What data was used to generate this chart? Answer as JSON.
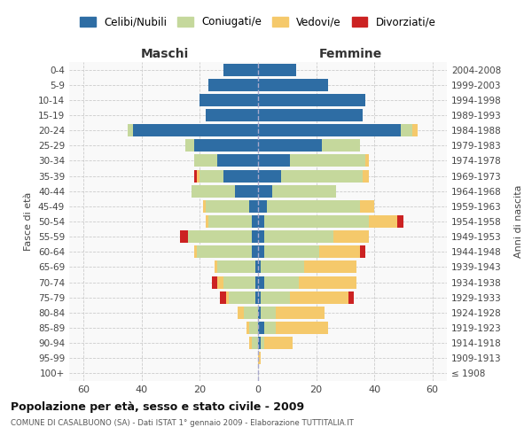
{
  "age_groups": [
    "100+",
    "95-99",
    "90-94",
    "85-89",
    "80-84",
    "75-79",
    "70-74",
    "65-69",
    "60-64",
    "55-59",
    "50-54",
    "45-49",
    "40-44",
    "35-39",
    "30-34",
    "25-29",
    "20-24",
    "15-19",
    "10-14",
    "5-9",
    "0-4"
  ],
  "birth_years": [
    "≤ 1908",
    "1909-1913",
    "1914-1918",
    "1919-1923",
    "1924-1928",
    "1929-1933",
    "1934-1938",
    "1939-1943",
    "1944-1948",
    "1949-1953",
    "1954-1958",
    "1959-1963",
    "1964-1968",
    "1969-1973",
    "1974-1978",
    "1979-1983",
    "1984-1988",
    "1989-1993",
    "1994-1998",
    "1999-2003",
    "2004-2008"
  ],
  "males": {
    "celibi": [
      0,
      0,
      0,
      0,
      0,
      1,
      1,
      1,
      2,
      2,
      2,
      3,
      8,
      12,
      14,
      22,
      43,
      18,
      20,
      17,
      12
    ],
    "coniugati": [
      0,
      0,
      2,
      3,
      5,
      9,
      11,
      13,
      19,
      22,
      15,
      15,
      15,
      8,
      8,
      3,
      2,
      0,
      0,
      0,
      0
    ],
    "vedovi": [
      0,
      0,
      1,
      1,
      2,
      1,
      2,
      1,
      1,
      0,
      1,
      1,
      0,
      1,
      0,
      0,
      0,
      0,
      0,
      0,
      0
    ],
    "divorziati": [
      0,
      0,
      0,
      0,
      0,
      2,
      2,
      0,
      0,
      3,
      0,
      0,
      0,
      1,
      0,
      0,
      0,
      0,
      0,
      0,
      0
    ]
  },
  "females": {
    "nubili": [
      0,
      0,
      1,
      2,
      1,
      1,
      2,
      1,
      2,
      2,
      2,
      3,
      5,
      8,
      11,
      22,
      49,
      36,
      37,
      24,
      13
    ],
    "coniugate": [
      0,
      0,
      1,
      4,
      5,
      10,
      12,
      15,
      19,
      24,
      36,
      32,
      22,
      28,
      26,
      13,
      4,
      0,
      0,
      0,
      0
    ],
    "vedove": [
      0,
      1,
      10,
      18,
      17,
      20,
      20,
      18,
      14,
      12,
      10,
      5,
      0,
      2,
      1,
      0,
      2,
      0,
      0,
      0,
      0
    ],
    "divorziate": [
      0,
      0,
      0,
      0,
      0,
      2,
      0,
      0,
      2,
      0,
      2,
      0,
      0,
      0,
      0,
      0,
      0,
      0,
      0,
      0,
      0
    ]
  },
  "colors": {
    "celibi": "#2e6da4",
    "coniugati": "#c5d89c",
    "vedovi": "#f5c96b",
    "divorziati": "#cc2222"
  },
  "xlim": 65,
  "title": "Popolazione per età, sesso e stato civile - 2009",
  "subtitle": "COMUNE DI CASALBUONO (SA) - Dati ISTAT 1° gennaio 2009 - Elaborazione TUTTITALIA.IT",
  "ylabel_left": "Fasce di età",
  "ylabel_right": "Anni di nascita",
  "xlabel_maschi": "Maschi",
  "xlabel_femmine": "Femmine",
  "bg_color": "#f9f9f9"
}
